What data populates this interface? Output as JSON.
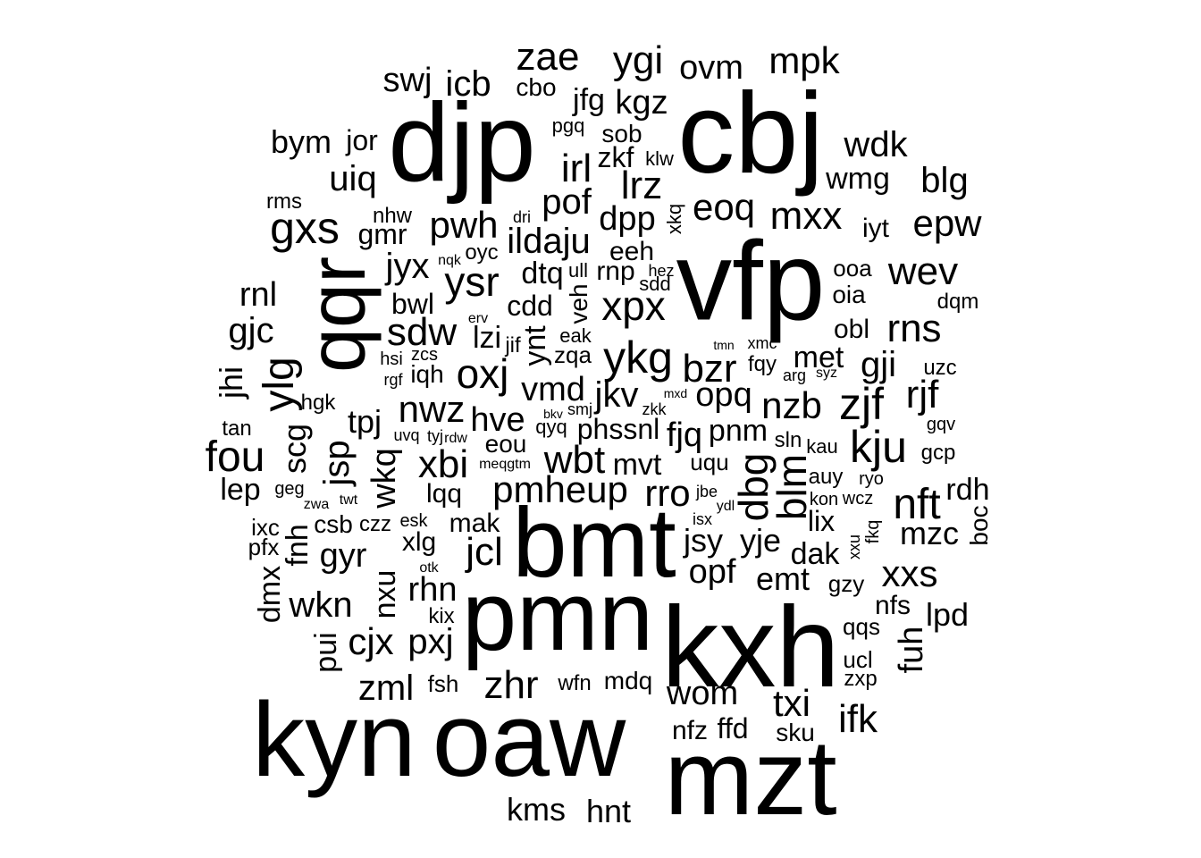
{
  "words": [
    {
      "text": "cbj",
      "size": 128,
      "v": false
    },
    {
      "text": "djp",
      "size": 124,
      "v": false
    },
    {
      "text": "vfp",
      "size": 125,
      "v": false
    },
    {
      "text": "kxh",
      "size": 128,
      "v": false
    },
    {
      "text": "mzt",
      "size": 120,
      "v": false
    },
    {
      "text": "oaw",
      "size": 118,
      "v": false
    },
    {
      "text": "kyn",
      "size": 118,
      "v": false
    },
    {
      "text": "pmn",
      "size": 110,
      "v": false
    },
    {
      "text": "bmt",
      "size": 110,
      "v": false
    },
    {
      "text": "qqr",
      "size": 90,
      "v": true
    },
    {
      "text": "zae",
      "size": 44,
      "v": false
    },
    {
      "text": "ygi",
      "size": 44,
      "v": false
    },
    {
      "text": "ovm",
      "size": 38,
      "v": false
    },
    {
      "text": "mpk",
      "size": 42,
      "v": false
    },
    {
      "text": "swj",
      "size": 38,
      "v": false
    },
    {
      "text": "icb",
      "size": 40,
      "v": false
    },
    {
      "text": "cbo",
      "size": 28,
      "v": false
    },
    {
      "text": "jfg",
      "size": 34,
      "v": false
    },
    {
      "text": "kgz",
      "size": 38,
      "v": false
    },
    {
      "text": "pgq",
      "size": 22,
      "v": false
    },
    {
      "text": "sob",
      "size": 28,
      "v": false
    },
    {
      "text": "bym",
      "size": 36,
      "v": false
    },
    {
      "text": "jor",
      "size": 32,
      "v": false
    },
    {
      "text": "wdk",
      "size": 40,
      "v": false
    },
    {
      "text": "irl",
      "size": 44,
      "v": false
    },
    {
      "text": "zkf",
      "size": 32,
      "v": false
    },
    {
      "text": "klw",
      "size": 22,
      "v": false
    },
    {
      "text": "uiq",
      "size": 40,
      "v": false
    },
    {
      "text": "lrz",
      "size": 44,
      "v": false
    },
    {
      "text": "wmg",
      "size": 34,
      "v": false
    },
    {
      "text": "blg",
      "size": 40,
      "v": false
    },
    {
      "text": "rms",
      "size": 24,
      "v": false
    },
    {
      "text": "pof",
      "size": 40,
      "v": false
    },
    {
      "text": "xkq",
      "size": 22,
      "v": true
    },
    {
      "text": "eoq",
      "size": 42,
      "v": false
    },
    {
      "text": "mxx",
      "size": 44,
      "v": false
    },
    {
      "text": "gxs",
      "size": 50,
      "v": false
    },
    {
      "text": "nhw",
      "size": 24,
      "v": false
    },
    {
      "text": "gmr",
      "size": 32,
      "v": false
    },
    {
      "text": "pwh",
      "size": 42,
      "v": false
    },
    {
      "text": "dri",
      "size": 18,
      "v": false
    },
    {
      "text": "dpp",
      "size": 38,
      "v": false
    },
    {
      "text": "iyt",
      "size": 30,
      "v": false
    },
    {
      "text": "epw",
      "size": 42,
      "v": false
    },
    {
      "text": "ildaju",
      "size": 40,
      "v": false
    },
    {
      "text": "eeh",
      "size": 30,
      "v": false
    },
    {
      "text": "oyc",
      "size": 24,
      "v": false
    },
    {
      "text": "jyx",
      "size": 40,
      "v": false
    },
    {
      "text": "nqk",
      "size": 16,
      "v": false
    },
    {
      "text": "ysr",
      "size": 46,
      "v": false
    },
    {
      "text": "dtq",
      "size": 34,
      "v": false
    },
    {
      "text": "ull",
      "size": 22,
      "v": false
    },
    {
      "text": "rnp",
      "size": 30,
      "v": false
    },
    {
      "text": "hez",
      "size": 18,
      "v": false
    },
    {
      "text": "sdd",
      "size": 22,
      "v": false
    },
    {
      "text": "ooa",
      "size": 26,
      "v": false
    },
    {
      "text": "wev",
      "size": 44,
      "v": false
    },
    {
      "text": "rnl",
      "size": 38,
      "v": false
    },
    {
      "text": "bwl",
      "size": 32,
      "v": false
    },
    {
      "text": "veh",
      "size": 28,
      "v": true
    },
    {
      "text": "xpx",
      "size": 46,
      "v": false
    },
    {
      "text": "oia",
      "size": 28,
      "v": false
    },
    {
      "text": "dqm",
      "size": 24,
      "v": false
    },
    {
      "text": "gjc",
      "size": 40,
      "v": false
    },
    {
      "text": "cdd",
      "size": 32,
      "v": false
    },
    {
      "text": "erv",
      "size": 16,
      "v": false
    },
    {
      "text": "sdw",
      "size": 44,
      "v": false
    },
    {
      "text": "lzi",
      "size": 34,
      "v": false
    },
    {
      "text": "ynt",
      "size": 34,
      "v": true
    },
    {
      "text": "eak",
      "size": 22,
      "v": false
    },
    {
      "text": "jif",
      "size": 24,
      "v": false
    },
    {
      "text": "rns",
      "size": 44,
      "v": false
    },
    {
      "text": "obl",
      "size": 30,
      "v": false
    },
    {
      "text": "ylg",
      "size": 48,
      "v": true
    },
    {
      "text": "hsi",
      "size": 20,
      "v": false
    },
    {
      "text": "zcs",
      "size": 20,
      "v": false
    },
    {
      "text": "zqa",
      "size": 26,
      "v": false
    },
    {
      "text": "ykg",
      "size": 50,
      "v": false
    },
    {
      "text": "tmn",
      "size": 14,
      "v": false
    },
    {
      "text": "xmc",
      "size": 18,
      "v": false
    },
    {
      "text": "met",
      "size": 34,
      "v": false
    },
    {
      "text": "gji",
      "size": 40,
      "v": false
    },
    {
      "text": "uzc",
      "size": 24,
      "v": false
    },
    {
      "text": "jhi",
      "size": 36,
      "v": true
    },
    {
      "text": "rgf",
      "size": 18,
      "v": false
    },
    {
      "text": "iqh",
      "size": 28,
      "v": false
    },
    {
      "text": "oxj",
      "size": 46,
      "v": false
    },
    {
      "text": "bzr",
      "size": 44,
      "v": false
    },
    {
      "text": "fqy",
      "size": 24,
      "v": false
    },
    {
      "text": "arg",
      "size": 18,
      "v": false
    },
    {
      "text": "syz",
      "size": 16,
      "v": false
    },
    {
      "text": "vmd",
      "size": 38,
      "v": false
    },
    {
      "text": "opq",
      "size": 38,
      "v": false
    },
    {
      "text": "zjf",
      "size": 50,
      "v": false
    },
    {
      "text": "rjf",
      "size": 44,
      "v": false
    },
    {
      "text": "hgk",
      "size": 24,
      "v": false
    },
    {
      "text": "jkv",
      "size": 40,
      "v": false
    },
    {
      "text": "mxd",
      "size": 14,
      "v": false
    },
    {
      "text": "nwz",
      "size": 42,
      "v": false
    },
    {
      "text": "nzb",
      "size": 42,
      "v": false
    },
    {
      "text": "tan",
      "size": 24,
      "v": false
    },
    {
      "text": "tpj",
      "size": 36,
      "v": false
    },
    {
      "text": "hve",
      "size": 38,
      "v": false
    },
    {
      "text": "bkv",
      "size": 14,
      "v": false
    },
    {
      "text": "smj",
      "size": 18,
      "v": false
    },
    {
      "text": "zkk",
      "size": 18,
      "v": false
    },
    {
      "text": "qyq",
      "size": 22,
      "v": false
    },
    {
      "text": "phssnl",
      "size": 32,
      "v": false
    },
    {
      "text": "fjq",
      "size": 38,
      "v": false
    },
    {
      "text": "pnm",
      "size": 34,
      "v": false
    },
    {
      "text": "gqv",
      "size": 20,
      "v": false
    },
    {
      "text": "uvq",
      "size": 18,
      "v": false
    },
    {
      "text": "tyj",
      "size": 18,
      "v": false
    },
    {
      "text": "rdw",
      "size": 16,
      "v": false
    },
    {
      "text": "eou",
      "size": 28,
      "v": false
    },
    {
      "text": "sln",
      "size": 24,
      "v": false
    },
    {
      "text": "kau",
      "size": 22,
      "v": false
    },
    {
      "text": "kju",
      "size": 50,
      "v": false
    },
    {
      "text": "fou",
      "size": 48,
      "v": false
    },
    {
      "text": "scg",
      "size": 36,
      "v": true
    },
    {
      "text": "jsp",
      "size": 40,
      "v": true
    },
    {
      "text": "wkq",
      "size": 38,
      "v": true
    },
    {
      "text": "xbi",
      "size": 44,
      "v": false
    },
    {
      "text": "wbt",
      "size": 44,
      "v": false
    },
    {
      "text": "meqgtm",
      "size": 16,
      "v": false
    },
    {
      "text": "mvt",
      "size": 34,
      "v": false
    },
    {
      "text": "uqu",
      "size": 26,
      "v": false
    },
    {
      "text": "dbg",
      "size": 46,
      "v": true
    },
    {
      "text": "blm",
      "size": 46,
      "v": true
    },
    {
      "text": "gcp",
      "size": 24,
      "v": false
    },
    {
      "text": "auy",
      "size": 24,
      "v": false
    },
    {
      "text": "lep",
      "size": 34,
      "v": false
    },
    {
      "text": "geg",
      "size": 20,
      "v": false
    },
    {
      "text": "lqq",
      "size": 30,
      "v": false
    },
    {
      "text": "pmheup",
      "size": 42,
      "v": false
    },
    {
      "text": "rro",
      "size": 42,
      "v": false
    },
    {
      "text": "jbe",
      "size": 18,
      "v": false
    },
    {
      "text": "ryo",
      "size": 20,
      "v": false
    },
    {
      "text": "rdh",
      "size": 34,
      "v": false
    },
    {
      "text": "zwa",
      "size": 16,
      "v": false
    },
    {
      "text": "twt",
      "size": 16,
      "v": false
    },
    {
      "text": "kon",
      "size": 20,
      "v": false
    },
    {
      "text": "wcz",
      "size": 20,
      "v": false
    },
    {
      "text": "nft",
      "size": 48,
      "v": false
    },
    {
      "text": "ydl",
      "size": 16,
      "v": false
    },
    {
      "text": "ixc",
      "size": 26,
      "v": false
    },
    {
      "text": "csb",
      "size": 28,
      "v": false
    },
    {
      "text": "czz",
      "size": 24,
      "v": false
    },
    {
      "text": "esk",
      "size": 20,
      "v": false
    },
    {
      "text": "mak",
      "size": 30,
      "v": false
    },
    {
      "text": "isx",
      "size": 18,
      "v": false
    },
    {
      "text": "lix",
      "size": 32,
      "v": false
    },
    {
      "text": "fkq",
      "size": 20,
      "v": true
    },
    {
      "text": "boc",
      "size": 28,
      "v": true
    },
    {
      "text": "mzc",
      "size": 36,
      "v": false
    },
    {
      "text": "pfx",
      "size": 26,
      "v": false
    },
    {
      "text": "fnh",
      "size": 34,
      "v": true
    },
    {
      "text": "xlg",
      "size": 30,
      "v": false
    },
    {
      "text": "jcl",
      "size": 44,
      "v": false
    },
    {
      "text": "jsy",
      "size": 36,
      "v": false
    },
    {
      "text": "yje",
      "size": 36,
      "v": false
    },
    {
      "text": "dak",
      "size": 34,
      "v": false
    },
    {
      "text": "xxu",
      "size": 18,
      "v": true
    },
    {
      "text": "gyr",
      "size": 38,
      "v": false
    },
    {
      "text": "otk",
      "size": 16,
      "v": false
    },
    {
      "text": "nxu",
      "size": 34,
      "v": true
    },
    {
      "text": "opf",
      "size": 38,
      "v": false
    },
    {
      "text": "emt",
      "size": 36,
      "v": false
    },
    {
      "text": "gzy",
      "size": 26,
      "v": false
    },
    {
      "text": "xxs",
      "size": 42,
      "v": false
    },
    {
      "text": "dmx",
      "size": 34,
      "v": true
    },
    {
      "text": "wkn",
      "size": 40,
      "v": false
    },
    {
      "text": "rhn",
      "size": 38,
      "v": false
    },
    {
      "text": "nfs",
      "size": 30,
      "v": false
    },
    {
      "text": "lpd",
      "size": 36,
      "v": false
    },
    {
      "text": "kix",
      "size": 24,
      "v": false
    },
    {
      "text": "qqs",
      "size": 26,
      "v": false
    },
    {
      "text": "pui",
      "size": 34,
      "v": true
    },
    {
      "text": "cjx",
      "size": 42,
      "v": false
    },
    {
      "text": "pxj",
      "size": 40,
      "v": false
    },
    {
      "text": "fuh",
      "size": 38,
      "v": true
    },
    {
      "text": "ucl",
      "size": 26,
      "v": false
    },
    {
      "text": "zxp",
      "size": 24,
      "v": false
    },
    {
      "text": "zml",
      "size": 40,
      "v": false
    },
    {
      "text": "fsh",
      "size": 26,
      "v": false
    },
    {
      "text": "zhr",
      "size": 44,
      "v": false
    },
    {
      "text": "wfn",
      "size": 24,
      "v": false
    },
    {
      "text": "mdq",
      "size": 28,
      "v": false
    },
    {
      "text": "wom",
      "size": 38,
      "v": false
    },
    {
      "text": "txi",
      "size": 42,
      "v": false
    },
    {
      "text": "ifk",
      "size": 44,
      "v": false
    },
    {
      "text": "nfz",
      "size": 30,
      "v": false
    },
    {
      "text": "ffd",
      "size": 32,
      "v": false
    },
    {
      "text": "sku",
      "size": 28,
      "v": false
    },
    {
      "text": "kms",
      "size": 36,
      "v": false
    },
    {
      "text": "hnt",
      "size": 36,
      "v": false
    }
  ]
}
